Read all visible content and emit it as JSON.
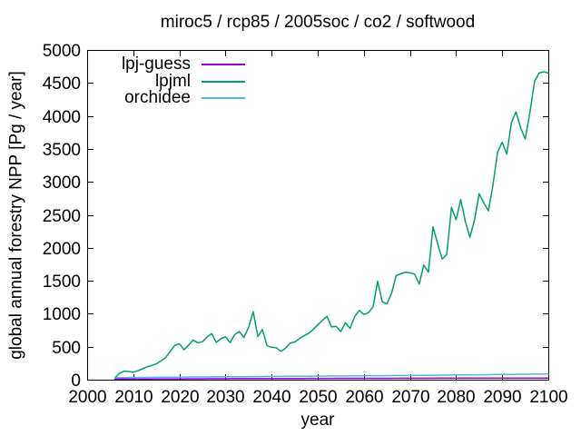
{
  "chart_data": {
    "type": "line",
    "title": "miroc5 / rcp85 / 2005soc / co2 / softwood",
    "xlabel": "year",
    "ylabel": "global annual forestry NPP [Pg / year]",
    "xlim": [
      2000,
      2100
    ],
    "ylim": [
      0,
      5000
    ],
    "x_ticks": [
      2000,
      2010,
      2020,
      2030,
      2040,
      2050,
      2060,
      2070,
      2080,
      2090,
      2100
    ],
    "y_ticks": [
      0,
      500,
      1000,
      1500,
      2000,
      2500,
      3000,
      3500,
      4000,
      4500,
      5000
    ],
    "grid": false,
    "legend_position": "top-left-inside",
    "x_start": 2006,
    "series": [
      {
        "name": "lpj-guess",
        "color": "#9400d3",
        "values": [
          8,
          9,
          9,
          10,
          10,
          10,
          11,
          11,
          11,
          12,
          12,
          12,
          13,
          13,
          13,
          13,
          14,
          14,
          14,
          14,
          15,
          15,
          15,
          15,
          15,
          16,
          16,
          16,
          16,
          16,
          17,
          17,
          17,
          17,
          17,
          17,
          18,
          18,
          18,
          18,
          18,
          18,
          19,
          19,
          19,
          19,
          19,
          19,
          20,
          20,
          20,
          20,
          20,
          20,
          20,
          21,
          21,
          21,
          21,
          21,
          21,
          21,
          22,
          22,
          22,
          22,
          22,
          22,
          22,
          22,
          23,
          23,
          23,
          23,
          23,
          23,
          23,
          23,
          24,
          24,
          24,
          24,
          24,
          24,
          24,
          24,
          24,
          25,
          25,
          25,
          25,
          25,
          25,
          25,
          25
        ]
      },
      {
        "name": "lpjml",
        "color": "#009e73",
        "values": [
          30,
          95,
          130,
          125,
          115,
          135,
          165,
          195,
          215,
          240,
          285,
          335,
          425,
          520,
          545,
          455,
          525,
          600,
          560,
          575,
          645,
          700,
          565,
          620,
          650,
          560,
          685,
          730,
          640,
          790,
          1030,
          655,
          760,
          515,
          490,
          485,
          430,
          475,
          555,
          570,
          620,
          665,
          700,
          760,
          830,
          900,
          960,
          800,
          810,
          730,
          865,
          775,
          955,
          1050,
          990,
          1015,
          1105,
          1490,
          1180,
          1150,
          1310,
          1580,
          1605,
          1630,
          1620,
          1600,
          1450,
          1740,
          1630,
          2320,
          2060,
          1830,
          1900,
          2615,
          2425,
          2730,
          2400,
          2160,
          2420,
          2820,
          2680,
          2560,
          2950,
          3450,
          3600,
          3420,
          3900,
          4060,
          3820,
          3650,
          4050,
          4520,
          4650,
          4670,
          4650
        ]
      },
      {
        "name": "orchidee",
        "color": "#56b4e9",
        "values": [
          30,
          31,
          32,
          33,
          33,
          34,
          35,
          35,
          36,
          36,
          37,
          38,
          38,
          39,
          39,
          40,
          40,
          41,
          41,
          42,
          42,
          43,
          43,
          44,
          44,
          45,
          45,
          46,
          46,
          47,
          47,
          48,
          48,
          49,
          49,
          50,
          50,
          51,
          51,
          52,
          52,
          53,
          53,
          54,
          54,
          55,
          55,
          56,
          56,
          57,
          57,
          58,
          58,
          59,
          59,
          60,
          60,
          61,
          61,
          62,
          62,
          63,
          63,
          64,
          64,
          65,
          66,
          66,
          67,
          68,
          68,
          69,
          70,
          70,
          71,
          72,
          72,
          73,
          74,
          75,
          75,
          76,
          77,
          78,
          79,
          79,
          80,
          81,
          82,
          83,
          83,
          84,
          85,
          85,
          86
        ]
      }
    ]
  }
}
